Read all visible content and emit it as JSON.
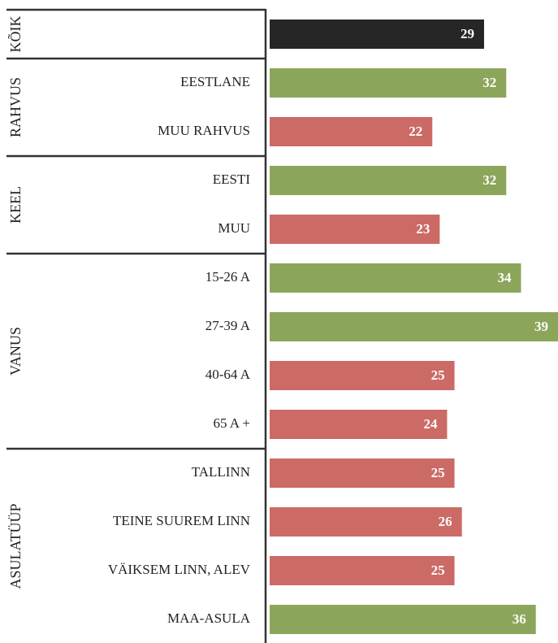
{
  "chart_data": {
    "type": "bar",
    "groups": [
      {
        "name": "KÕIK",
        "categories": [
          null
        ],
        "values": [
          29
        ],
        "colors": [
          "#262626"
        ]
      },
      {
        "name": "RAHVUS",
        "categories": [
          "EESTLANE",
          "MUU RAHVUS"
        ],
        "values": [
          32,
          22
        ],
        "colors": [
          "#8ba65b",
          "#cc6a66"
        ]
      },
      {
        "name": "KEEL",
        "categories": [
          "EESTI",
          "MUU"
        ],
        "values": [
          32,
          23
        ],
        "colors": [
          "#8ba65b",
          "#cc6a66"
        ]
      },
      {
        "name": "VANUS",
        "categories": [
          "15-26 A",
          "27-39 A",
          "40-64 A",
          "65 A +"
        ],
        "values": [
          34,
          39,
          25,
          24
        ],
        "colors": [
          "#8ba65b",
          "#8ba65b",
          "#cc6a66",
          "#cc6a66"
        ]
      },
      {
        "name": "ASULATÜÜP",
        "categories": [
          "TALLINN",
          "TEINE SUUREM LINN",
          "VÄIKSEM LINN, ALEV",
          "MAA-ASULA"
        ],
        "values": [
          25,
          26,
          25,
          36
        ],
        "colors": [
          "#cc6a66",
          "#cc6a66",
          "#cc6a66",
          "#8ba65b"
        ]
      }
    ]
  }
}
